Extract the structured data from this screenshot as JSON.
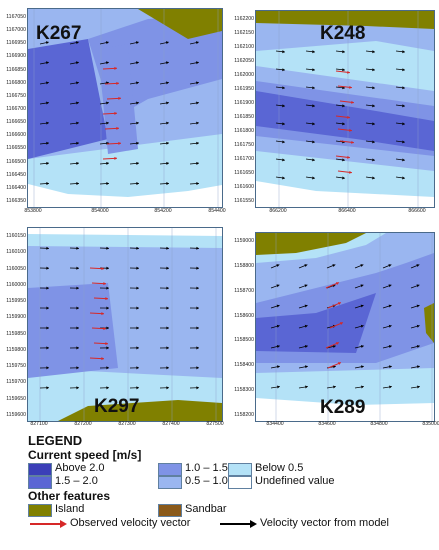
{
  "panels": [
    {
      "id": "K267",
      "title": "K267",
      "y_ticks": [
        "1167050",
        "1167000",
        "1166950",
        "1166900",
        "1166850",
        "1166800",
        "1166750",
        "1166700",
        "1166650",
        "1166600",
        "1166550",
        "1166500",
        "1166450",
        "1166400",
        "1166350"
      ],
      "x_ticks": [
        "853800",
        "854000",
        "854200",
        "854400"
      ]
    },
    {
      "id": "K248",
      "title": "K248",
      "y_ticks": [
        "1162200",
        "1162150",
        "1162100",
        "1162050",
        "1162000",
        "1161950",
        "1161900",
        "1161850",
        "1161800",
        "1161750",
        "1161700",
        "1161650",
        "1161600",
        "1161550"
      ],
      "x_ticks": [
        "866200",
        "866400",
        "866600"
      ]
    },
    {
      "id": "K297",
      "title": "K297",
      "y_ticks": [
        "1160150",
        "1160100",
        "1160050",
        "1160000",
        "1159950",
        "1159900",
        "1159850",
        "1159800",
        "1159750",
        "1159700",
        "1159650",
        "1159600"
      ],
      "x_ticks": [
        "827100",
        "827200",
        "827300",
        "827400",
        "827500"
      ]
    },
    {
      "id": "K289",
      "title": "K289",
      "y_ticks": [
        "1159000",
        "1158800",
        "1158700",
        "1158600",
        "1158500",
        "1158400",
        "1158300",
        "1158200"
      ],
      "x_ticks": [
        "834400",
        "834600",
        "834800",
        "835000"
      ]
    }
  ],
  "legend": {
    "title": "LEGEND",
    "speed_title": "Current speed [m/s]",
    "speed_classes": [
      {
        "label": "Above 2.0",
        "color": "#3b3fb8"
      },
      {
        "label": "1.5 – 2.0",
        "color": "#5a66d4"
      },
      {
        "label": "1.0 – 1.5",
        "color": "#7f93e6"
      },
      {
        "label": "0.5 – 1.0",
        "color": "#9ab6f0"
      },
      {
        "label": "Below 0.5",
        "color": "#b4e2f7"
      },
      {
        "label": "Undefined value",
        "color": "#ffffff"
      }
    ],
    "features_title": "Other features",
    "features": [
      {
        "label": "Island",
        "color": "#808000"
      },
      {
        "label": "Sandbar",
        "color": "#8a5a1a"
      }
    ],
    "observed_label": "Observed velocity vector",
    "model_label": "Velocity vector from model",
    "observed_color": "#d62828",
    "model_color": "#000000"
  }
}
